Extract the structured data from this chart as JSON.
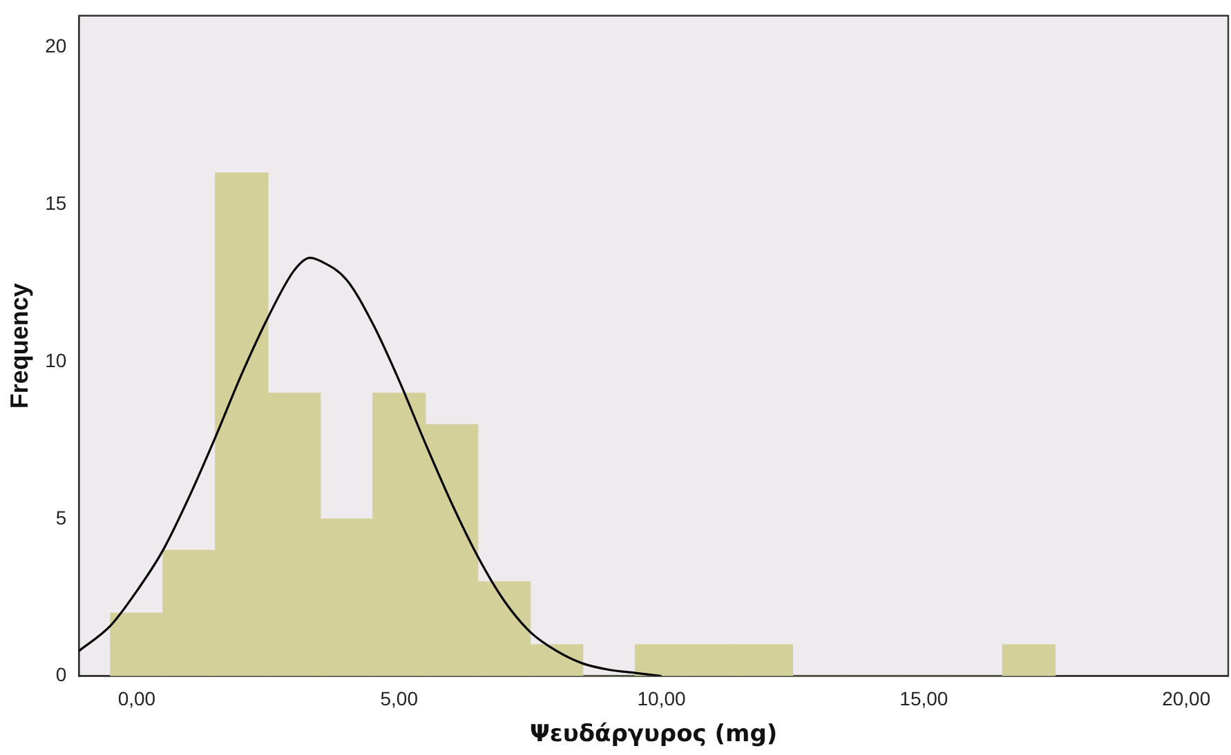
{
  "chart_data": {
    "type": "histogram",
    "xlabel": "Ψευδάργυρος (mg)",
    "ylabel": "Frequency",
    "bins": [
      -0.5,
      0.5,
      1.5,
      2.5,
      3.5,
      4.5,
      5.5,
      6.5,
      7.5,
      8.5,
      9.5,
      10.5,
      11.5,
      12.5,
      13.5,
      14.5,
      15.5,
      16.5,
      17.5
    ],
    "values": [
      2,
      4,
      16,
      9,
      5,
      9,
      8,
      3,
      1,
      0,
      1,
      1,
      1,
      0,
      0,
      0,
      0,
      1
    ],
    "color": "#d4d09a",
    "series": [
      {
        "type": "line",
        "color": "#000000",
        "marker": "none",
        "x": [
          -1.1,
          -0.5,
          0,
          0.5,
          1,
          1.5,
          2,
          2.5,
          3,
          3.3,
          3.5,
          4,
          4.5,
          5,
          5.5,
          6,
          6.5,
          7,
          7.5,
          8,
          8.5,
          9,
          9.5,
          10
        ],
        "values": [
          0.8,
          1.6,
          2.7,
          4.0,
          5.7,
          7.6,
          9.6,
          11.4,
          12.9,
          13.3,
          13.2,
          12.6,
          11.2,
          9.4,
          7.4,
          5.5,
          3.8,
          2.4,
          1.4,
          0.8,
          0.4,
          0.2,
          0.1,
          0.0
        ]
      }
    ],
    "xlim": [
      -1.1,
      20.8
    ],
    "ylim": [
      0,
      21
    ],
    "xticks": [
      {
        "value": 0,
        "label": "0,00"
      },
      {
        "value": 5,
        "label": "5,00"
      },
      {
        "value": 10,
        "label": "10,00"
      },
      {
        "value": 15,
        "label": "15,00"
      },
      {
        "value": 20,
        "label": "20,00"
      }
    ],
    "yticks": [
      0,
      5,
      10,
      15,
      20
    ],
    "grid": false,
    "legend": false
  }
}
